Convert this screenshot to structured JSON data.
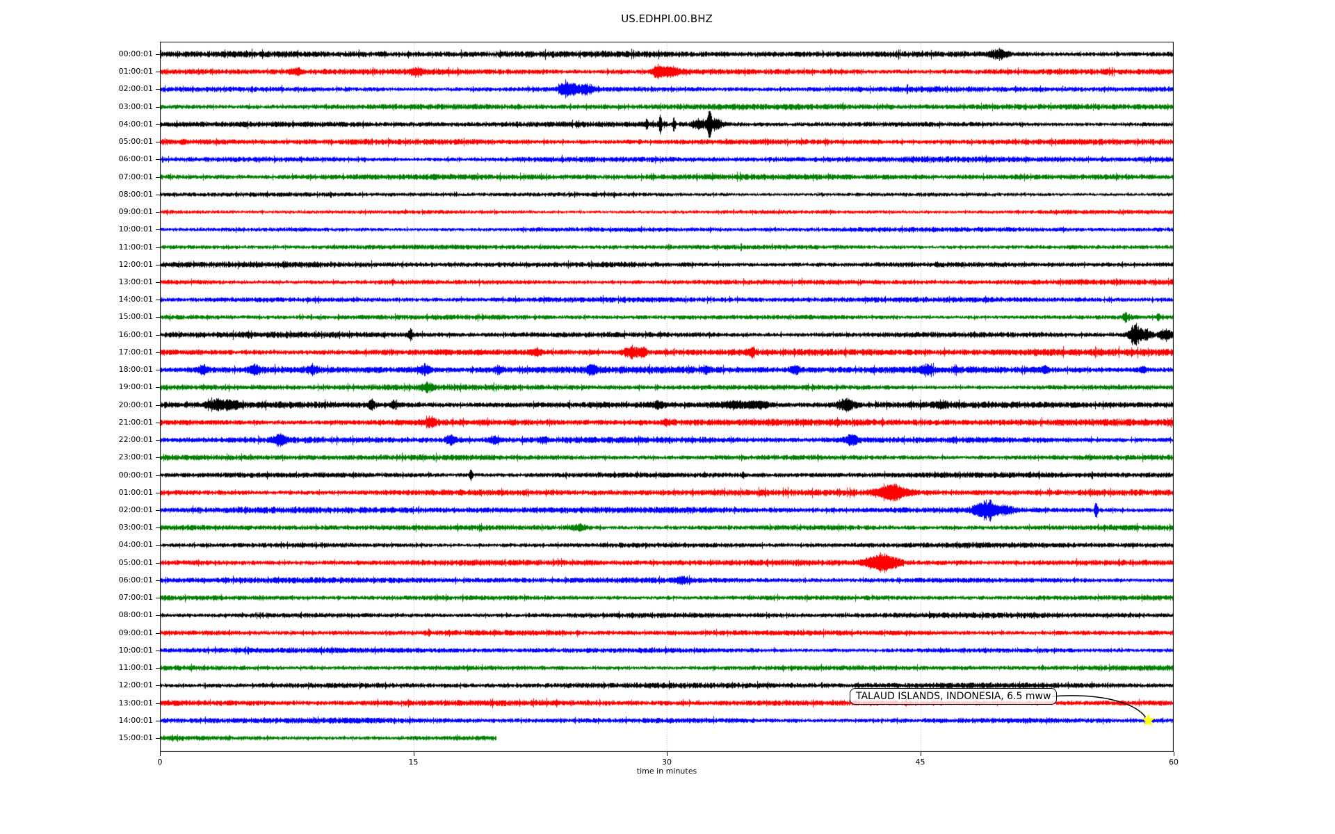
{
  "title": "US.EDHPI.00.BHZ",
  "axis": {
    "xlabel": "time in minutes",
    "x_min": 0,
    "x_max": 60,
    "x_ticks": [
      0,
      15,
      30,
      45,
      60
    ],
    "grid_minutes": [
      15,
      30,
      45
    ],
    "grid_color": "#aaaaaa"
  },
  "colors": {
    "black": "#000000",
    "red": "#ff0000",
    "blue": "#0000ff",
    "green": "#008000",
    "star": "#ffff00",
    "frame": "#000000"
  },
  "annotation": {
    "label": "TALAUD ISLANDS, INDONESIA, 6.5 mww",
    "row_index": 38,
    "minute": 58.5
  },
  "chart_data": {
    "type": "line",
    "subtype": "helicorder-dayplot",
    "title": "US.EDHPI.00.BHZ",
    "xlabel": "time in minutes",
    "xlim": [
      0,
      60
    ],
    "minutes_per_row": 60,
    "rows": [
      {
        "label": "00:00:01",
        "color": "black",
        "base": 2.6,
        "end": 60,
        "events": [
          {
            "t": 49.6,
            "w": 0.35,
            "a": 4
          }
        ]
      },
      {
        "label": "01:00:01",
        "color": "red",
        "base": 2.6,
        "end": 60,
        "events": [
          {
            "t": 8.1,
            "w": 0.2,
            "a": 3
          },
          {
            "t": 15.2,
            "w": 0.25,
            "a": 3
          },
          {
            "t": 29.4,
            "w": 0.15,
            "a": 5
          },
          {
            "t": 30.1,
            "w": 0.5,
            "a": 5
          }
        ]
      },
      {
        "label": "02:00:01",
        "color": "blue",
        "base": 2.4,
        "end": 60,
        "events": [
          {
            "t": 24.0,
            "w": 0.25,
            "a": 7
          },
          {
            "t": 24.5,
            "w": 0.15,
            "a": 5
          },
          {
            "t": 25.2,
            "w": 0.3,
            "a": 5
          }
        ]
      },
      {
        "label": "03:00:01",
        "color": "green",
        "base": 2.4,
        "end": 60,
        "events": []
      },
      {
        "label": "04:00:01",
        "color": "black",
        "base": 2.2,
        "end": 60,
        "events": [
          {
            "t": 28.8,
            "w": 0.06,
            "a": 5
          },
          {
            "t": 29.6,
            "w": 0.06,
            "a": 11
          },
          {
            "t": 30.4,
            "w": 0.06,
            "a": 7
          },
          {
            "t": 31.9,
            "w": 0.25,
            "a": 6
          },
          {
            "t": 32.5,
            "w": 0.1,
            "a": 14
          },
          {
            "t": 32.9,
            "w": 0.25,
            "a": 6
          }
        ]
      },
      {
        "label": "05:00:01",
        "color": "red",
        "base": 2.6,
        "end": 60,
        "events": []
      },
      {
        "label": "06:00:01",
        "color": "blue",
        "base": 2.4,
        "end": 60,
        "events": []
      },
      {
        "label": "07:00:01",
        "color": "green",
        "base": 2.4,
        "end": 60,
        "events": []
      },
      {
        "label": "08:00:01",
        "color": "black",
        "base": 1.7,
        "end": 60,
        "events": []
      },
      {
        "label": "09:00:01",
        "color": "red",
        "base": 1.7,
        "end": 60,
        "events": []
      },
      {
        "label": "10:00:01",
        "color": "blue",
        "base": 1.9,
        "end": 60,
        "events": []
      },
      {
        "label": "11:00:01",
        "color": "green",
        "base": 1.9,
        "end": 60,
        "events": []
      },
      {
        "label": "12:00:01",
        "color": "black",
        "base": 2.4,
        "end": 60,
        "events": []
      },
      {
        "label": "13:00:01",
        "color": "red",
        "base": 2.2,
        "end": 60,
        "events": []
      },
      {
        "label": "14:00:01",
        "color": "blue",
        "base": 2.2,
        "end": 60,
        "events": []
      },
      {
        "label": "15:00:01",
        "color": "green",
        "base": 2.0,
        "end": 60,
        "events": [
          {
            "t": 57.1,
            "w": 0.08,
            "a": 5
          },
          {
            "t": 59.1,
            "w": 0.08,
            "a": 4
          }
        ]
      },
      {
        "label": "16:00:01",
        "color": "black",
        "base": 2.5,
        "end": 60,
        "events": [
          {
            "t": 14.8,
            "w": 0.1,
            "a": 6
          },
          {
            "t": 57.7,
            "w": 0.25,
            "a": 12
          },
          {
            "t": 58.4,
            "w": 0.2,
            "a": 5
          },
          {
            "t": 59.5,
            "w": 0.25,
            "a": 6
          }
        ]
      },
      {
        "label": "17:00:01",
        "color": "red",
        "base": 2.9,
        "end": 60,
        "events": [
          {
            "t": 22.3,
            "w": 0.2,
            "a": 4
          },
          {
            "t": 27.9,
            "w": 0.35,
            "a": 6
          },
          {
            "t": 28.6,
            "w": 0.15,
            "a": 4
          },
          {
            "t": 35.0,
            "w": 0.2,
            "a": 3
          }
        ]
      },
      {
        "label": "18:00:01",
        "color": "blue",
        "base": 2.9,
        "end": 60,
        "events": [
          {
            "t": 2.5,
            "w": 0.2,
            "a": 4
          },
          {
            "t": 5.6,
            "w": 0.25,
            "a": 4
          },
          {
            "t": 9.0,
            "w": 0.2,
            "a": 3
          },
          {
            "t": 15.7,
            "w": 0.2,
            "a": 5
          },
          {
            "t": 20.0,
            "w": 0.2,
            "a": 3
          },
          {
            "t": 25.5,
            "w": 0.2,
            "a": 4
          },
          {
            "t": 32.3,
            "w": 0.15,
            "a": 3
          },
          {
            "t": 37.6,
            "w": 0.2,
            "a": 4
          },
          {
            "t": 45.4,
            "w": 0.2,
            "a": 5
          },
          {
            "t": 52.4,
            "w": 0.15,
            "a": 3
          },
          {
            "t": 58.2,
            "w": 0.15,
            "a": 3
          }
        ]
      },
      {
        "label": "19:00:01",
        "color": "green",
        "base": 2.4,
        "end": 60,
        "events": [
          {
            "t": 15.8,
            "w": 0.2,
            "a": 4
          }
        ]
      },
      {
        "label": "20:00:01",
        "color": "black",
        "base": 2.9,
        "end": 60,
        "events": [
          {
            "t": 3.3,
            "w": 0.4,
            "a": 4
          },
          {
            "t": 4.2,
            "w": 0.3,
            "a": 4
          },
          {
            "t": 12.5,
            "w": 0.12,
            "a": 5
          },
          {
            "t": 13.8,
            "w": 0.12,
            "a": 4
          },
          {
            "t": 29.5,
            "w": 0.2,
            "a": 3
          },
          {
            "t": 34.0,
            "w": 0.8,
            "a": 3
          },
          {
            "t": 35.5,
            "w": 0.4,
            "a": 3
          },
          {
            "t": 40.6,
            "w": 0.35,
            "a": 6
          },
          {
            "t": 46.2,
            "w": 0.25,
            "a": 3
          }
        ]
      },
      {
        "label": "21:00:01",
        "color": "red",
        "base": 2.9,
        "end": 60,
        "events": [
          {
            "t": 16.0,
            "w": 0.2,
            "a": 5
          },
          {
            "t": 30.0,
            "w": 0.3,
            "a": 2
          }
        ]
      },
      {
        "label": "22:00:01",
        "color": "blue",
        "base": 2.6,
        "end": 60,
        "events": [
          {
            "t": 7.1,
            "w": 0.25,
            "a": 5
          },
          {
            "t": 17.2,
            "w": 0.2,
            "a": 4
          },
          {
            "t": 19.8,
            "w": 0.2,
            "a": 4
          },
          {
            "t": 22.7,
            "w": 0.2,
            "a": 3
          },
          {
            "t": 40.9,
            "w": 0.3,
            "a": 5
          }
        ]
      },
      {
        "label": "23:00:01",
        "color": "green",
        "base": 2.4,
        "end": 60,
        "events": []
      },
      {
        "label": "00:00:01",
        "color": "black",
        "base": 2.4,
        "end": 60,
        "events": [
          {
            "t": 18.4,
            "w": 0.06,
            "a": 6
          },
          {
            "t": 34.5,
            "w": 0.08,
            "a": 3
          }
        ]
      },
      {
        "label": "01:00:01",
        "color": "red",
        "base": 2.6,
        "end": 60,
        "events": [
          {
            "t": 42.6,
            "w": 0.3,
            "a": 4
          },
          {
            "t": 43.4,
            "w": 0.35,
            "a": 8
          },
          {
            "t": 44.2,
            "w": 0.3,
            "a": 3
          }
        ]
      },
      {
        "label": "02:00:01",
        "color": "blue",
        "base": 2.6,
        "end": 60,
        "events": [
          {
            "t": 48.4,
            "w": 0.3,
            "a": 5
          },
          {
            "t": 49.0,
            "w": 0.3,
            "a": 10
          },
          {
            "t": 49.9,
            "w": 0.4,
            "a": 4
          },
          {
            "t": 55.4,
            "w": 0.06,
            "a": 10
          }
        ]
      },
      {
        "label": "03:00:01",
        "color": "green",
        "base": 2.4,
        "end": 60,
        "events": [
          {
            "t": 24.8,
            "w": 0.3,
            "a": 3
          }
        ]
      },
      {
        "label": "04:00:01",
        "color": "black",
        "base": 2.2,
        "end": 60,
        "events": []
      },
      {
        "label": "05:00:01",
        "color": "red",
        "base": 2.4,
        "end": 60,
        "events": [
          {
            "t": 42.0,
            "w": 0.3,
            "a": 4
          },
          {
            "t": 42.8,
            "w": 0.35,
            "a": 9
          },
          {
            "t": 43.5,
            "w": 0.3,
            "a": 4
          }
        ]
      },
      {
        "label": "06:00:01",
        "color": "blue",
        "base": 2.4,
        "end": 60,
        "events": [
          {
            "t": 30.9,
            "w": 0.3,
            "a": 3
          }
        ]
      },
      {
        "label": "07:00:01",
        "color": "green",
        "base": 2.2,
        "end": 60,
        "events": []
      },
      {
        "label": "08:00:01",
        "color": "black",
        "base": 2.2,
        "end": 60,
        "events": []
      },
      {
        "label": "09:00:01",
        "color": "red",
        "base": 2.2,
        "end": 60,
        "events": []
      },
      {
        "label": "10:00:01",
        "color": "blue",
        "base": 2.2,
        "end": 60,
        "events": []
      },
      {
        "label": "11:00:01",
        "color": "green",
        "base": 2.2,
        "end": 60,
        "events": []
      },
      {
        "label": "12:00:01",
        "color": "black",
        "base": 2.3,
        "end": 60,
        "events": []
      },
      {
        "label": "13:00:01",
        "color": "red",
        "base": 2.4,
        "end": 60,
        "events": []
      },
      {
        "label": "14:00:01",
        "color": "blue",
        "base": 2.4,
        "end": 60,
        "events": []
      },
      {
        "label": "15:00:01",
        "color": "green",
        "base": 2.2,
        "end": 19.9,
        "events": []
      }
    ]
  }
}
